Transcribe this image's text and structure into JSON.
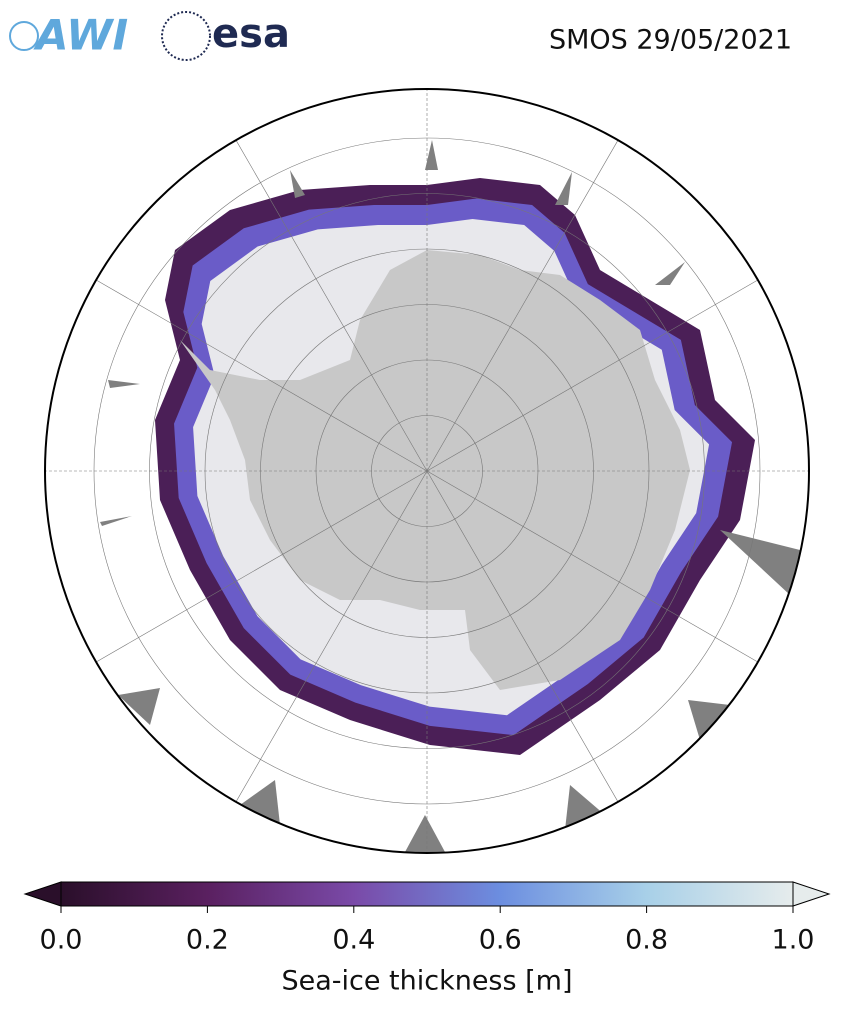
{
  "header": {
    "logos": [
      "AWI",
      "esa"
    ],
    "title": "SMOS 29/05/2021"
  },
  "colorbar": {
    "label": "Sea-ice thickness [m]",
    "lim": [
      0,
      1
    ],
    "ticks": [
      {
        "value": 0,
        "label": "0.0"
      },
      {
        "value": 0.2,
        "label": "0.2"
      },
      {
        "value": 0.4,
        "label": "0.4"
      },
      {
        "value": 0.6,
        "label": "0.6"
      },
      {
        "value": 0.8,
        "label": "0.8"
      },
      {
        "value": 1,
        "label": "1.0"
      }
    ],
    "colors": [
      "#2a0f2a",
      "#5a2060",
      "#7a4aa8",
      "#6c8ee0",
      "#a8d0e8",
      "#e6ecec"
    ]
  }
}
